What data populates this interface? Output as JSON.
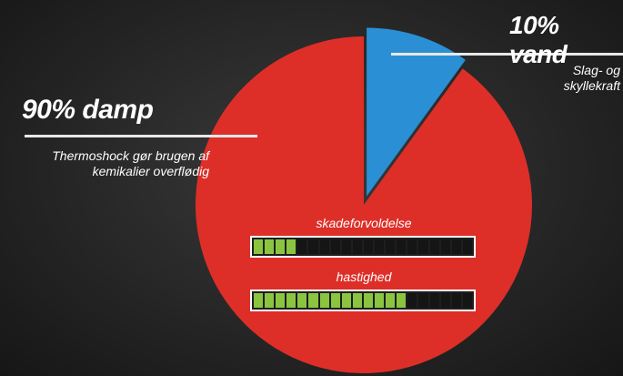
{
  "chart_data": {
    "type": "pie",
    "slices": [
      {
        "label": "10% vand",
        "value": 10,
        "color": "#2a8fd4",
        "exploded": true,
        "description": "Slag- og skyllekraft"
      },
      {
        "label": "90% damp",
        "value": 90,
        "color": "#dd2f28",
        "exploded": false,
        "description": "Thermoshock gør brugen af kemikalier overflødig"
      }
    ]
  },
  "annotations": {
    "vand": {
      "title": "10% vand",
      "description_lines": [
        "Slag- og",
        "skyllekraft"
      ]
    },
    "damp": {
      "title": "90% damp",
      "description_lines": [
        "Thermoshock gør brugen af",
        "kemikalier overflødig"
      ]
    }
  },
  "gauges": [
    {
      "label": "skadeforvoldelse",
      "filled": 4,
      "total": 20,
      "on_color": "#8bc540"
    },
    {
      "label": "hastighed",
      "filled": 14,
      "total": 20,
      "on_color": "#8bc540"
    }
  ]
}
